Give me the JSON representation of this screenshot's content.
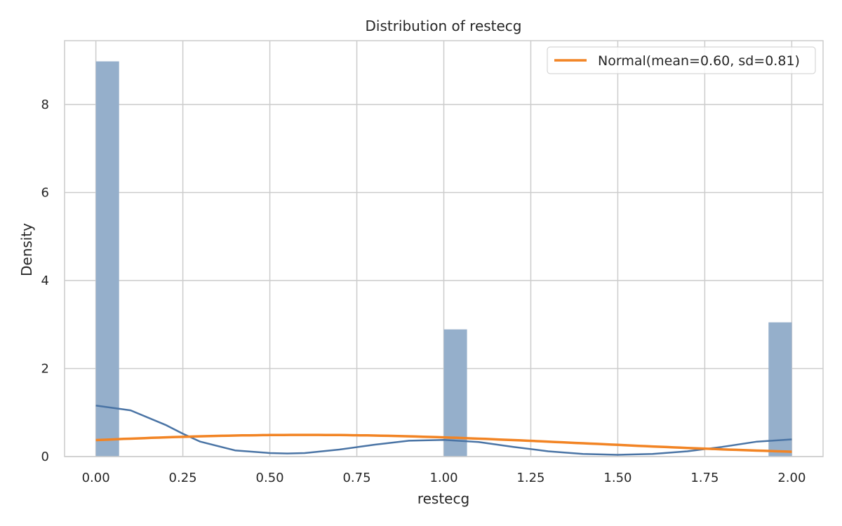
{
  "chart_data": {
    "type": "bar",
    "title": "Distribution of restecg",
    "xlabel": "restecg",
    "ylabel": "Density",
    "xlim": [
      -0.09,
      2.09
    ],
    "ylim": [
      0,
      9.45
    ],
    "xticks": [
      0.0,
      0.25,
      0.5,
      0.75,
      1.0,
      1.25,
      1.5,
      1.75,
      2.0
    ],
    "xtick_labels": [
      "0.00",
      "0.25",
      "0.50",
      "0.75",
      "1.00",
      "1.25",
      "1.50",
      "1.75",
      "2.00"
    ],
    "yticks": [
      0,
      2,
      4,
      6,
      8
    ],
    "ytick_labels": [
      "0",
      "2",
      "4",
      "6",
      "8"
    ],
    "grid": true,
    "legend_position": "top-right",
    "histogram": {
      "bin_width": 0.0667,
      "bars": [
        {
          "x_start": 0.0,
          "x_end": 0.0667,
          "density": 8.98
        },
        {
          "x_start": 1.0,
          "x_end": 1.0667,
          "density": 2.89
        },
        {
          "x_start": 1.9333,
          "x_end": 2.0,
          "density": 3.05
        }
      ],
      "color": "#95afcb"
    },
    "series": [
      {
        "kind": "kde",
        "color": "#4a74a5",
        "x": [
          0.0,
          0.1,
          0.2,
          0.25,
          0.3,
          0.4,
          0.5,
          0.55,
          0.6,
          0.7,
          0.8,
          0.9,
          1.0,
          1.1,
          1.2,
          1.3,
          1.4,
          1.5,
          1.6,
          1.7,
          1.8,
          1.9,
          2.0
        ],
        "y": [
          1.16,
          1.05,
          0.72,
          0.52,
          0.34,
          0.14,
          0.08,
          0.07,
          0.08,
          0.16,
          0.27,
          0.36,
          0.38,
          0.33,
          0.22,
          0.12,
          0.06,
          0.04,
          0.06,
          0.12,
          0.22,
          0.34,
          0.39
        ]
      },
      {
        "name": "Normal(mean=0.60, sd=0.81)",
        "kind": "normal-pdf",
        "color": "#f28424",
        "mean": 0.6,
        "sd": 0.81,
        "x_range": [
          0.0,
          2.0
        ]
      }
    ]
  }
}
